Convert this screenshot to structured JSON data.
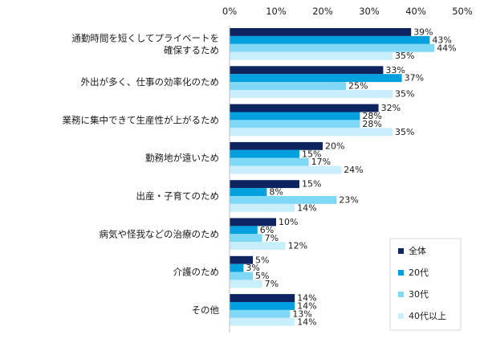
{
  "chart_data": {
    "type": "bar",
    "orientation": "horizontal",
    "title": "",
    "xlabel": "",
    "ylabel": "",
    "xlim": [
      0,
      50
    ],
    "x_ticks": [
      "0%",
      "10%",
      "20%",
      "30%",
      "40%",
      "50%"
    ],
    "x_tick_values": [
      0,
      10,
      20,
      30,
      40,
      50
    ],
    "grid": false,
    "legend_position": "bottom-right",
    "categories": [
      [
        "通勤時間を短くしてプライベートを",
        "確保するため"
      ],
      [
        "外出が多く、仕事の効率化のため"
      ],
      [
        "業務に集中できて生産性が上がるため"
      ],
      [
        "勤務地が遠いため"
      ],
      [
        "出産・子育てのため"
      ],
      [
        "病気や怪我などの治療のため"
      ],
      [
        "介護のため"
      ],
      [
        "その他"
      ]
    ],
    "series": [
      {
        "name": "全体",
        "color": "#0d2461",
        "values": [
          39,
          33,
          32,
          20,
          15,
          10,
          5,
          14
        ]
      },
      {
        "name": "20代",
        "color": "#00a0df",
        "values": [
          43,
          37,
          28,
          15,
          8,
          6,
          3,
          14
        ]
      },
      {
        "name": "30代",
        "color": "#7fd8f5",
        "values": [
          44,
          25,
          28,
          17,
          23,
          7,
          5,
          13
        ]
      },
      {
        "name": "40代以上",
        "color": "#c9effc",
        "values": [
          35,
          35,
          35,
          24,
          14,
          12,
          7,
          14
        ]
      }
    ],
    "value_suffix": "%"
  }
}
